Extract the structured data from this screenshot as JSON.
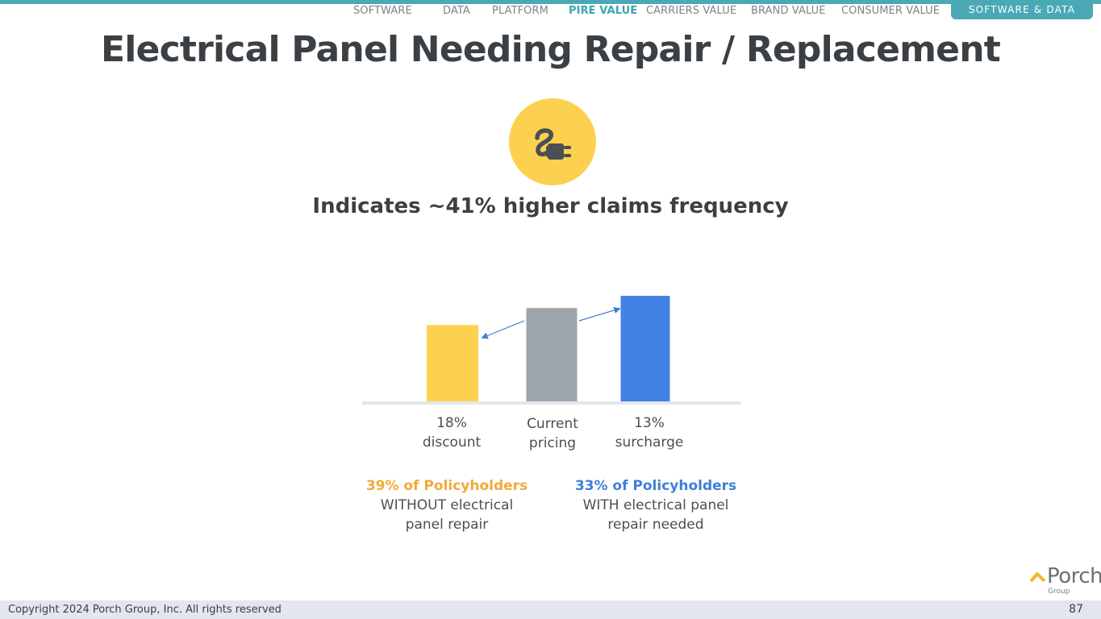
{
  "nav": {
    "items": [
      "SOFTWARE",
      "DATA",
      "PLATFORM",
      "PIRE VALUE",
      "CARRIERS VALUE",
      "BRAND VALUE",
      "CONSUMER VALUE"
    ],
    "active": "PIRE VALUE",
    "badge": "SOFTWARE & DATA"
  },
  "title": "Electrical Panel Needing Repair / Replacement",
  "icon": "electric-plug-icon",
  "subtitle": "Indicates ~41% higher claims frequency",
  "chart_data": {
    "type": "bar",
    "title": "",
    "categories": [
      "18%\ndiscount",
      "Current\npricing",
      "13%\nsurcharge"
    ],
    "values": [
      82,
      100,
      113
    ],
    "colors": [
      "#fdd150",
      "#9ea4ab",
      "#4182e6"
    ],
    "ylim": [
      0,
      125
    ],
    "xlabel": "",
    "ylabel": ""
  },
  "bar_labels": [
    {
      "line1": "18%",
      "line2": "discount"
    },
    {
      "line1": "Current",
      "line2": "pricing"
    },
    {
      "line1": "13%",
      "line2": "surcharge"
    }
  ],
  "policyholders": {
    "left": {
      "head": "39% of Policyholders",
      "line1": "WITHOUT electrical",
      "line2": "panel repair"
    },
    "right": {
      "head": "33% of Policyholders",
      "line1": "WITH electrical panel",
      "line2": "repair needed"
    }
  },
  "footer": {
    "copyright": "Copyright 2024 Porch Group, Inc. All rights reserved",
    "page": "87"
  },
  "logo": {
    "word": "Porch",
    "sub": "Group"
  },
  "colors": {
    "accent": "#4aa9b5",
    "yellow": "#fdd150",
    "gray": "#9ea4ab",
    "blue": "#4182e6"
  }
}
